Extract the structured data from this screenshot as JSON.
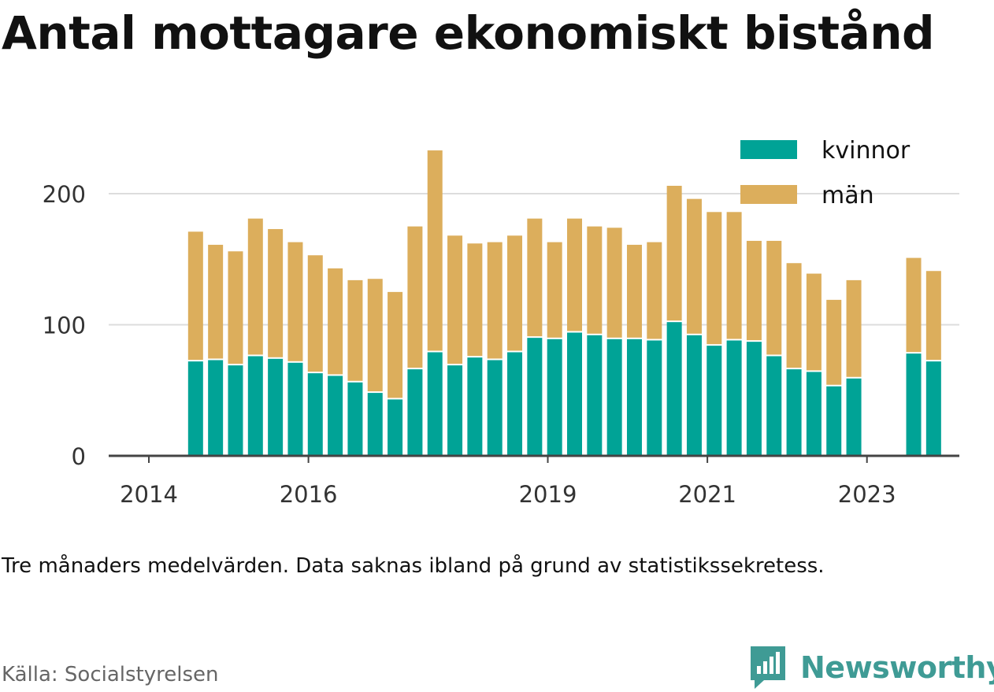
{
  "title": "Antal mottagare ekonomiskt bistånd",
  "note": "Tre månaders medelvärden. Data saknas ibland på grund av statistikssekretess.",
  "source": "Källa: Socialstyrelsen",
  "brand": {
    "name": "Newsworthy",
    "icon": "newsworthy-logo-icon",
    "color": "#3f9b95"
  },
  "chart_data": {
    "type": "bar",
    "stacked": true,
    "grid": true,
    "legend_position": "top-right",
    "xlabel": "",
    "ylabel": "",
    "ylim": [
      0,
      240
    ],
    "y_ticks": [
      0,
      100,
      200
    ],
    "x_ticks": [
      "2014",
      "2016",
      "2019",
      "2021",
      "2023"
    ],
    "categories": [
      "2014 Q2",
      "2014 Q3",
      "2014 Q4",
      "2015 Q1",
      "2015 Q2",
      "2015 Q3",
      "2015 Q4",
      "2016 Q1",
      "2016 Q2",
      "2016 Q3",
      "2016 Q4",
      "2017 Q1",
      "2017 Q2",
      "2017 Q3",
      "2017 Q4",
      "2018 Q1",
      "2018 Q2",
      "2018 Q3",
      "2018 Q4",
      "2019 Q1",
      "2019 Q2",
      "2019 Q3",
      "2019 Q4",
      "2020 Q1",
      "2020 Q2",
      "2020 Q3",
      "2020 Q4",
      "2021 Q1",
      "2021 Q2",
      "2021 Q3",
      "2021 Q4",
      "2022 Q1",
      "2022 Q2",
      "2022 Q3",
      "2022 Q4",
      "2023 Q1",
      "2023 Q2",
      "2023 Q3"
    ],
    "series": [
      {
        "name": "kvinnor",
        "color": "#00a396",
        "values": [
          72,
          73,
          69,
          76,
          74,
          71,
          63,
          61,
          56,
          48,
          43,
          66,
          79,
          69,
          75,
          73,
          79,
          90,
          89,
          94,
          92,
          89,
          89,
          88,
          102,
          92,
          84,
          88,
          87,
          76,
          66,
          64,
          53,
          59,
          null,
          null,
          78,
          72
        ]
      },
      {
        "name": "män",
        "color": "#dcae5c",
        "values": [
          99,
          88,
          87,
          105,
          99,
          92,
          90,
          82,
          78,
          87,
          82,
          109,
          154,
          99,
          87,
          90,
          89,
          91,
          74,
          87,
          83,
          85,
          72,
          75,
          104,
          104,
          102,
          98,
          77,
          88,
          81,
          75,
          66,
          75,
          null,
          null,
          73,
          69
        ]
      }
    ]
  }
}
